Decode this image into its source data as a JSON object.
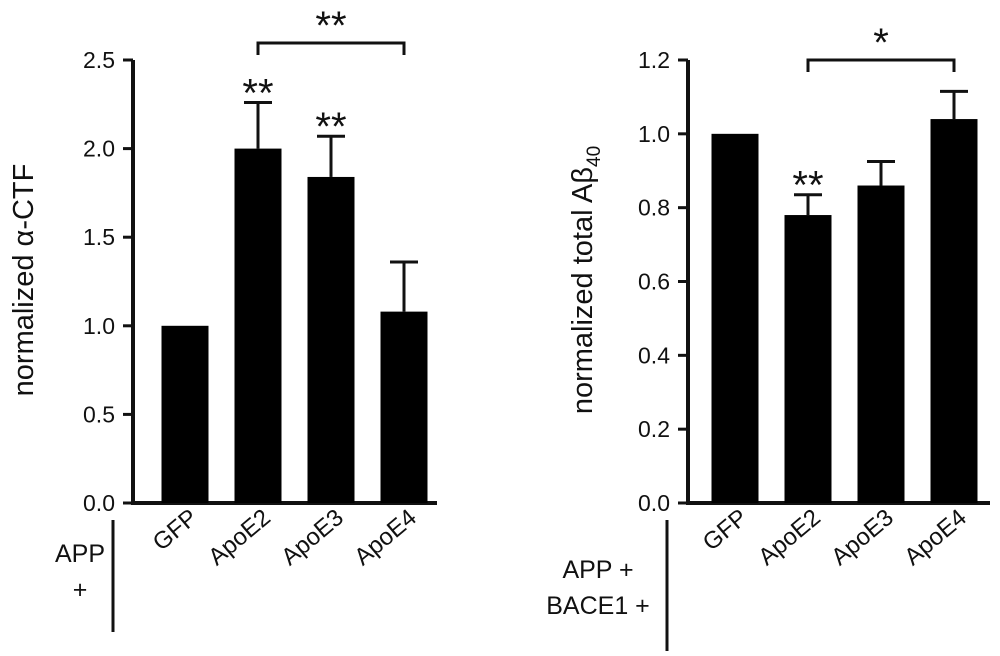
{
  "chart_data": [
    {
      "type": "bar",
      "group_label": [
        "APP",
        "+"
      ],
      "categories": [
        "GFP",
        "ApoE2",
        "ApoE3",
        "ApoE4"
      ],
      "values": [
        1.0,
        2.0,
        1.84,
        1.08
      ],
      "errors": [
        0,
        0.26,
        0.23,
        0.28
      ],
      "ylabel": "normalized α-CTF",
      "ylim": [
        0,
        2.5
      ],
      "yticks": [
        "0.0",
        "0.5",
        "1.0",
        "1.5",
        "2.0",
        "2.5"
      ],
      "bar_significance": [
        "",
        "**",
        "**",
        ""
      ],
      "comparison": {
        "from": "ApoE2",
        "to": "ApoE4",
        "label": "**"
      },
      "color": "#000000"
    },
    {
      "type": "bar",
      "group_label": [
        "APP +",
        "BACE1 +"
      ],
      "categories": [
        "GFP",
        "ApoE2",
        "ApoE3",
        "ApoE4"
      ],
      "values": [
        1.0,
        0.78,
        0.86,
        1.04
      ],
      "errors": [
        0,
        0.055,
        0.065,
        0.075
      ],
      "ylabel": "normalized total Aβ",
      "ylabel_subscript": "40",
      "ylim": [
        0,
        1.2
      ],
      "yticks": [
        "0.0",
        "0.2",
        "0.4",
        "0.6",
        "0.8",
        "1.0",
        "1.2"
      ],
      "bar_significance": [
        "",
        "**",
        "",
        ""
      ],
      "comparison": {
        "from": "ApoE2",
        "to": "ApoE4",
        "label": "*"
      },
      "color": "#000000"
    }
  ]
}
